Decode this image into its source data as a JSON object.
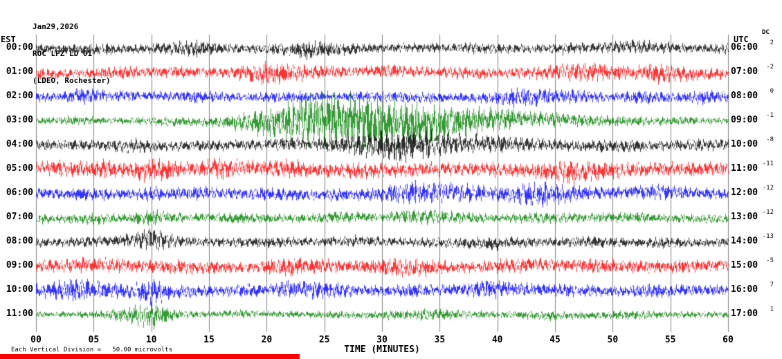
{
  "title": {
    "line1": "Jan29,2026",
    "line2": "ROC LPZ LD 01",
    "line3": "(LDEO, Rochester)"
  },
  "axis": {
    "left_label": "EST",
    "right_label": "UTC",
    "dc_label": "DC",
    "x_title": "TIME (MINUTES)",
    "x_ticks": [
      "00",
      "05",
      "10",
      "15",
      "20",
      "25",
      "30",
      "35",
      "40",
      "45",
      "50",
      "55",
      "60"
    ]
  },
  "footer": {
    "scale_text": "Each Vertical Division =   50.00 microvolts"
  },
  "colors": {
    "black": "#000000",
    "red": "#ff0000",
    "blue": "#0000ff",
    "green": "#008000",
    "grid": "#808080"
  },
  "chart_data": {
    "type": "line",
    "title": "ROC LPZ LD 01 helicorder, Jan29,2026 (LDEO, Rochester)",
    "x_axis": {
      "label": "TIME (MINUTES)",
      "min": 0,
      "max": 60,
      "tick_step": 5
    },
    "left_axis_label": "EST",
    "right_axis_label": "UTC",
    "units_note": "Each Vertical Division = 50.00 microvolts",
    "rows": [
      {
        "est": "00:00",
        "utc": "06:00",
        "dc": "2",
        "color": "black",
        "env": [
          6,
          5,
          6,
          7,
          5,
          6,
          8,
          11,
          6,
          5,
          6,
          8,
          12,
          8,
          6,
          5,
          6,
          6,
          5,
          7,
          6,
          6,
          5,
          8,
          6,
          7,
          9,
          7,
          6,
          5,
          7
        ]
      },
      {
        "est": "01:00",
        "utc": "07:00",
        "dc": "-2",
        "color": "red",
        "env": [
          7,
          6,
          5,
          7,
          8,
          6,
          7,
          6,
          5,
          10,
          14,
          11,
          8,
          7,
          6,
          8,
          7,
          6,
          7,
          8,
          6,
          7,
          8,
          10,
          12,
          9,
          8,
          12,
          10,
          7,
          6
        ]
      },
      {
        "est": "02:00",
        "utc": "08:00",
        "dc": "0",
        "color": "blue",
        "env": [
          6,
          5,
          10,
          7,
          6,
          5,
          6,
          7,
          6,
          5,
          6,
          7,
          6,
          5,
          6,
          6,
          7,
          6,
          5,
          6,
          8,
          13,
          10,
          8,
          7,
          6,
          8,
          7,
          6,
          9,
          6
        ]
      },
      {
        "est": "03:00",
        "utc": "09:00",
        "dc": "-1",
        "color": "green",
        "env": [
          4,
          5,
          6,
          4,
          4,
          5,
          6,
          5,
          7,
          11,
          17,
          24,
          30,
          36,
          34,
          30,
          27,
          24,
          21,
          17,
          14,
          11,
          9,
          8,
          7,
          6,
          6,
          5,
          5,
          4,
          4
        ]
      },
      {
        "est": "04:00",
        "utc": "10:00",
        "dc": "-8",
        "color": "black",
        "env": [
          6,
          6,
          7,
          6,
          9,
          7,
          6,
          6,
          7,
          6,
          7,
          8,
          7,
          10,
          14,
          18,
          20,
          16,
          13,
          11,
          10,
          8,
          8,
          7,
          7,
          8,
          7,
          6,
          7,
          8,
          7
        ]
      },
      {
        "est": "05:00",
        "utc": "11:00",
        "dc": "-11",
        "color": "red",
        "env": [
          8,
          10,
          9,
          12,
          8,
          16,
          10,
          8,
          14,
          10,
          8,
          12,
          9,
          8,
          10,
          9,
          8,
          9,
          8,
          8,
          9,
          8,
          10,
          16,
          13,
          10,
          9,
          8,
          9,
          8,
          8
        ]
      },
      {
        "est": "06:00",
        "utc": "12:00",
        "dc": "-12",
        "color": "blue",
        "env": [
          7,
          6,
          8,
          7,
          6,
          9,
          7,
          8,
          7,
          6,
          8,
          7,
          6,
          8,
          7,
          9,
          12,
          14,
          12,
          10,
          8,
          12,
          16,
          10,
          8,
          7,
          8,
          9,
          7,
          6,
          7
        ]
      },
      {
        "est": "07:00",
        "utc": "13:00",
        "dc": "-12",
        "color": "green",
        "env": [
          6,
          5,
          6,
          7,
          6,
          10,
          6,
          5,
          6,
          7,
          6,
          5,
          6,
          7,
          6,
          5,
          8,
          10,
          8,
          6,
          5,
          6,
          7,
          6,
          5,
          6,
          6,
          5,
          6,
          5,
          6
        ]
      },
      {
        "est": "08:00",
        "utc": "14:00",
        "dc": "-13",
        "color": "black",
        "env": [
          6,
          5,
          7,
          6,
          8,
          14,
          7,
          6,
          5,
          6,
          7,
          6,
          5,
          6,
          7,
          6,
          5,
          6,
          6,
          7,
          8,
          6,
          5,
          6,
          7,
          6,
          5,
          7,
          6,
          5,
          6
        ]
      },
      {
        "est": "09:00",
        "utc": "15:00",
        "dc": "-5",
        "color": "red",
        "env": [
          7,
          8,
          10,
          9,
          8,
          7,
          9,
          8,
          7,
          6,
          8,
          12,
          9,
          8,
          7,
          9,
          12,
          10,
          8,
          7,
          8,
          9,
          8,
          7,
          8,
          9,
          8,
          7,
          8,
          7,
          7
        ]
      },
      {
        "est": "10:00",
        "utc": "16:00",
        "dc": "7",
        "color": "blue",
        "env": [
          8,
          12,
          14,
          10,
          9,
          16,
          8,
          7,
          6,
          8,
          7,
          10,
          12,
          9,
          7,
          6,
          8,
          7,
          6,
          10,
          12,
          8,
          7,
          8,
          7,
          6,
          8,
          9,
          7,
          6,
          7
        ]
      },
      {
        "est": "11:00",
        "utc": "17:00",
        "dc": "1",
        "color": "green",
        "env": [
          4,
          3,
          4,
          5,
          10,
          16,
          6,
          4,
          4,
          5,
          4,
          4,
          4,
          5,
          4,
          5,
          6,
          8,
          6,
          5,
          4,
          5,
          6,
          5,
          4,
          5,
          6,
          4,
          4,
          4,
          4
        ]
      }
    ]
  }
}
